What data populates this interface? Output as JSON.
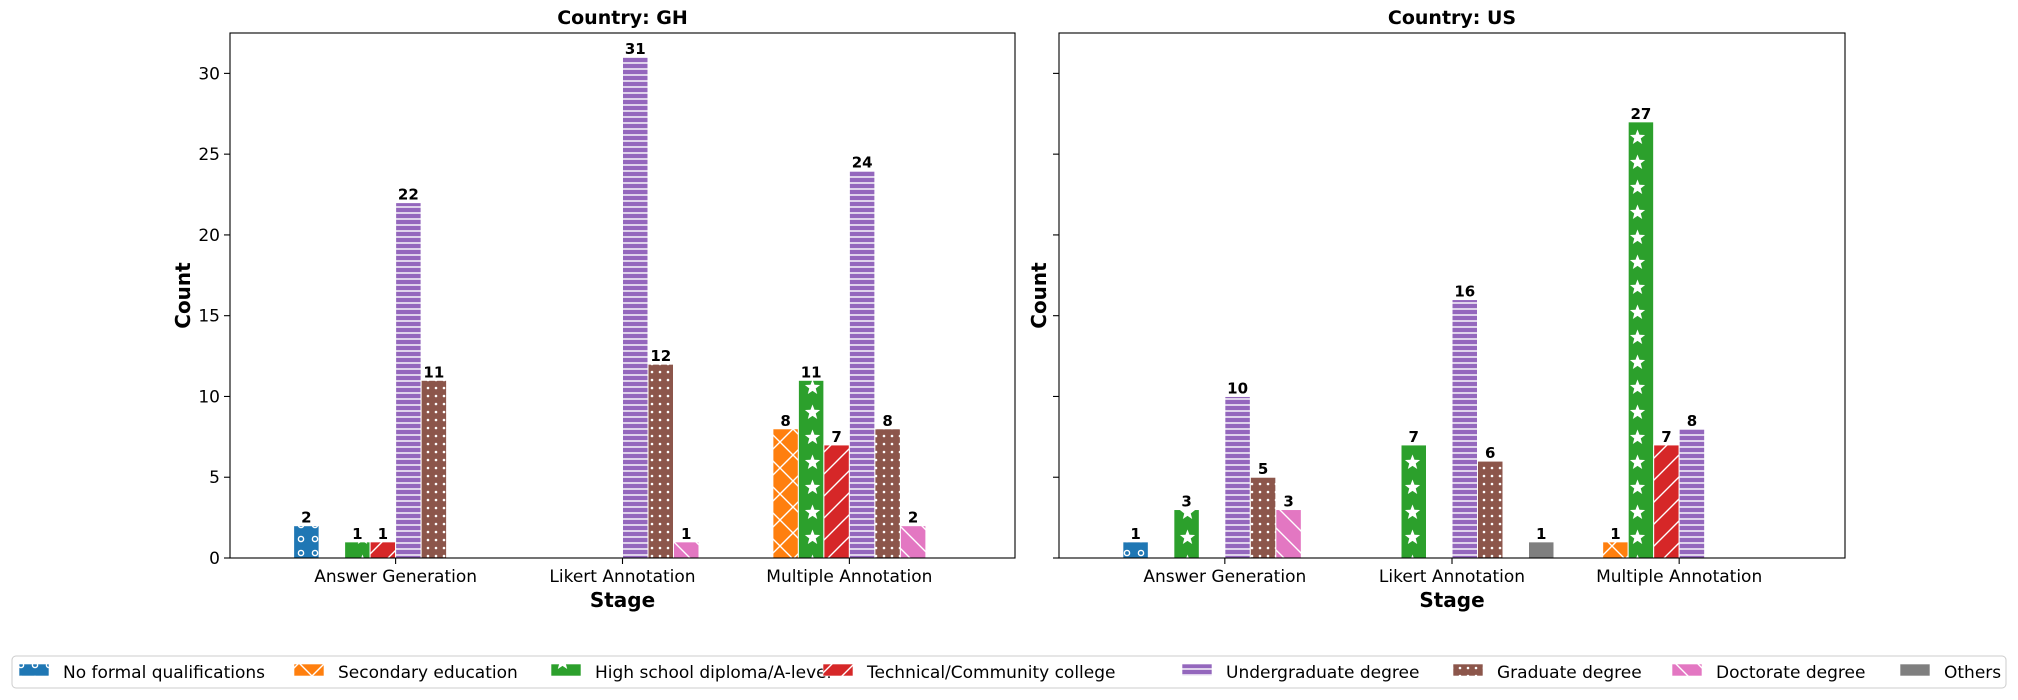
{
  "chart_data": {
    "type": "bar",
    "ylabel": "Count",
    "xlabel": "Stage",
    "ylim": [
      0,
      32.5
    ],
    "yticks": [
      0,
      5,
      10,
      15,
      20,
      25,
      30
    ],
    "categories": [
      "Answer Generation",
      "Likert Annotation",
      "Multiple Annotation"
    ],
    "legend_location": "bottom-center",
    "series": [
      {
        "name": "No formal qualifications",
        "color": "#1f77b4",
        "pattern": "circles"
      },
      {
        "name": "Secondary education",
        "color": "#ff7f0e",
        "pattern": "crosshatch"
      },
      {
        "name": "High school diploma/A-level",
        "color": "#2ca02c",
        "pattern": "stars"
      },
      {
        "name": "Technical/Community college",
        "color": "#d62728",
        "pattern": "diagonal"
      },
      {
        "name": "Undergraduate degree",
        "color": "#9467bd",
        "pattern": "horizontal"
      },
      {
        "name": "Graduate degree",
        "color": "#8c564b",
        "pattern": "dots"
      },
      {
        "name": "Doctorate degree",
        "color": "#e377c2",
        "pattern": "backslash"
      },
      {
        "name": "Others",
        "color": "#7f7f7f",
        "pattern": "none"
      }
    ],
    "panels": [
      {
        "title": "Country: GH",
        "values": {
          "Answer Generation": [
            2,
            0,
            1,
            1,
            22,
            11,
            0,
            0
          ],
          "Likert Annotation": [
            0,
            0,
            0,
            0,
            31,
            12,
            1,
            0
          ],
          "Multiple Annotation": [
            0,
            8,
            11,
            7,
            24,
            8,
            2,
            0
          ]
        }
      },
      {
        "title": "Country: US",
        "values": {
          "Answer Generation": [
            1,
            0,
            3,
            0,
            10,
            5,
            3,
            0
          ],
          "Likert Annotation": [
            0,
            0,
            7,
            0,
            16,
            6,
            0,
            1
          ],
          "Multiple Annotation": [
            0,
            1,
            27,
            7,
            8,
            0,
            0,
            0
          ]
        }
      }
    ]
  }
}
